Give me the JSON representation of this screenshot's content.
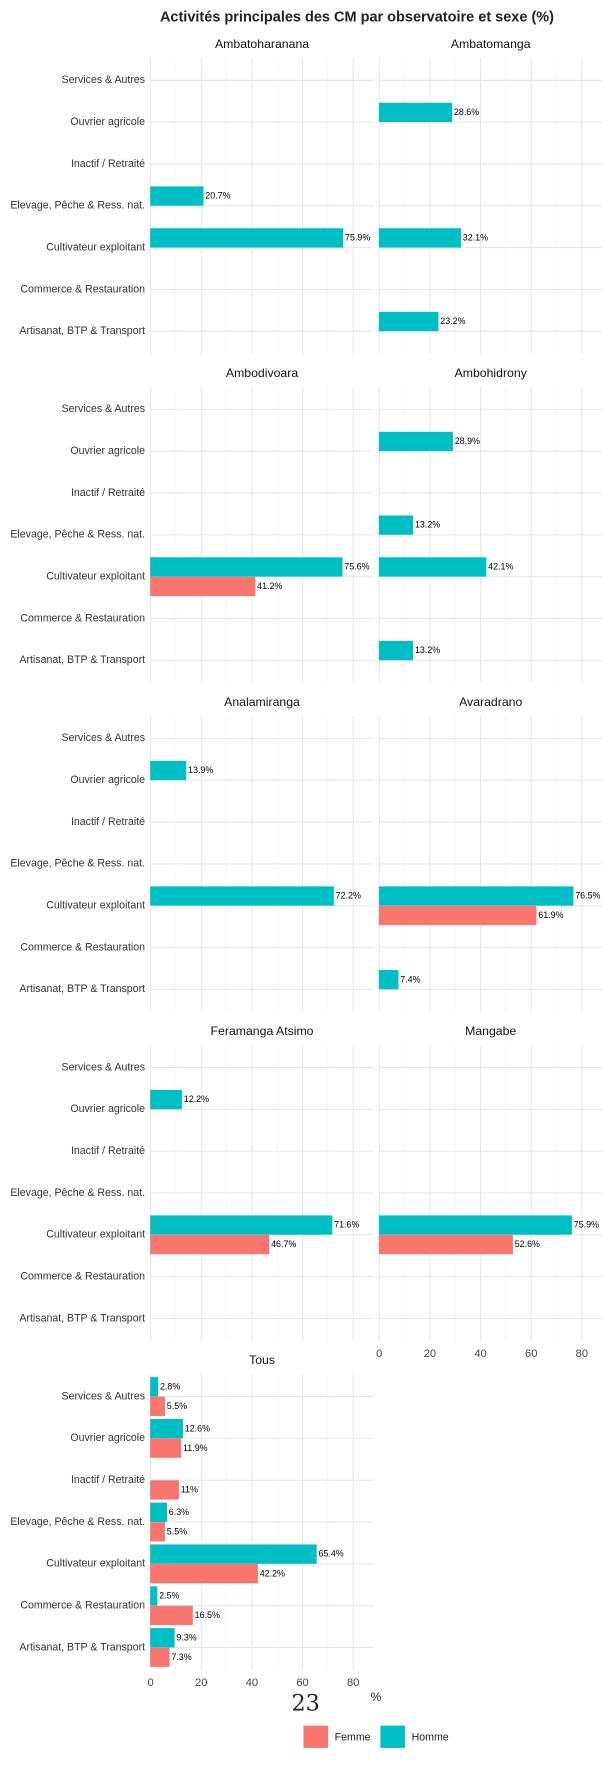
{
  "chart_data": {
    "type": "bar",
    "orientation": "horizontal",
    "title": "Activités principales des CM par observatoire et sexe (%)",
    "x_label": "%",
    "page_number": "23",
    "legend_position": "bottom",
    "legend": [
      {
        "name": "Femme",
        "color": "#F8766D"
      },
      {
        "name": "Homme",
        "color": "#00BFC4"
      }
    ],
    "categories": [
      "Services & Autres",
      "Ouvrier agricole",
      "Inactif / Retraité",
      "Elevage, Pêche & Ress. nat.",
      "Cultivateur exploitant",
      "Commerce & Restauration",
      "Artisanat, BTP & Transport"
    ],
    "xlim": [
      0,
      88
    ],
    "xticks": [
      0,
      20,
      40,
      60,
      80
    ],
    "grid": true,
    "facets": [
      {
        "name": "Ambatoharanana",
        "series": [
          {
            "values": [
              0,
              0,
              0,
              0,
              0,
              0,
              0
            ],
            "value_labels": [
              null,
              null,
              null,
              null,
              null,
              null,
              null
            ]
          },
          {
            "values": [
              0,
              0,
              0,
              20.7,
              75.9,
              0,
              0
            ],
            "value_labels": [
              null,
              null,
              null,
              "20.7%",
              "75.9%",
              null,
              null
            ]
          }
        ]
      },
      {
        "name": "Ambatomanga",
        "series": [
          {
            "values": [
              0,
              0,
              0,
              0,
              0,
              0,
              0
            ],
            "value_labels": [
              null,
              null,
              null,
              null,
              null,
              null,
              null
            ]
          },
          {
            "values": [
              0,
              28.6,
              0,
              0,
              32.1,
              0,
              23.2
            ],
            "value_labels": [
              null,
              "28.6%",
              null,
              null,
              "32.1%",
              null,
              "23.2%"
            ]
          }
        ]
      },
      {
        "name": "Ambodivoara",
        "series": [
          {
            "values": [
              0,
              0,
              0,
              0,
              41.2,
              0,
              0
            ],
            "value_labels": [
              null,
              null,
              null,
              null,
              "41.2%",
              null,
              null
            ]
          },
          {
            "values": [
              0,
              0,
              0,
              0,
              75.6,
              0,
              0
            ],
            "value_labels": [
              null,
              null,
              null,
              null,
              "75.6%",
              null,
              null
            ]
          }
        ]
      },
      {
        "name": "Ambohidrony",
        "series": [
          {
            "values": [
              0,
              0,
              0,
              0,
              0,
              0,
              0
            ],
            "value_labels": [
              null,
              null,
              null,
              null,
              null,
              null,
              null
            ]
          },
          {
            "values": [
              0,
              28.9,
              0,
              13.2,
              42.1,
              0,
              13.2
            ],
            "value_labels": [
              null,
              "28.9%",
              null,
              "13.2%",
              "42.1%",
              null,
              "13.2%"
            ]
          }
        ]
      },
      {
        "name": "Analamiranga",
        "series": [
          {
            "values": [
              0,
              0,
              0,
              0,
              0,
              0,
              0
            ],
            "value_labels": [
              null,
              null,
              null,
              null,
              null,
              null,
              null
            ]
          },
          {
            "values": [
              0,
              13.9,
              0,
              0,
              72.2,
              0,
              0
            ],
            "value_labels": [
              null,
              "13.9%",
              null,
              null,
              "72.2%",
              null,
              null
            ]
          }
        ]
      },
      {
        "name": "Avaradrano",
        "series": [
          {
            "values": [
              0,
              0,
              0,
              0,
              61.9,
              0,
              0
            ],
            "value_labels": [
              null,
              null,
              null,
              null,
              "61.9%",
              null,
              null
            ]
          },
          {
            "values": [
              0,
              0,
              0,
              0,
              76.5,
              0,
              7.4
            ],
            "value_labels": [
              null,
              null,
              null,
              null,
              "76.5%",
              null,
              "7.4%"
            ]
          }
        ]
      },
      {
        "name": "Feramanga Atsimo",
        "series": [
          {
            "values": [
              0,
              0,
              0,
              0,
              46.7,
              0,
              0
            ],
            "value_labels": [
              null,
              null,
              null,
              null,
              "46.7%",
              null,
              null
            ]
          },
          {
            "values": [
              0,
              12.2,
              0,
              0,
              71.6,
              0,
              0
            ],
            "value_labels": [
              null,
              "12.2%",
              null,
              null,
              "71.6%",
              null,
              null
            ]
          }
        ]
      },
      {
        "name": "Mangabe",
        "series": [
          {
            "values": [
              0,
              0,
              0,
              0,
              52.6,
              0,
              0
            ],
            "value_labels": [
              null,
              null,
              null,
              null,
              "52.6%",
              null,
              null
            ]
          },
          {
            "values": [
              0,
              0,
              0,
              0,
              75.9,
              0,
              0
            ],
            "value_labels": [
              null,
              null,
              null,
              null,
              "75.9%",
              null,
              null
            ]
          }
        ]
      },
      {
        "name": "Tous",
        "series": [
          {
            "values": [
              5.5,
              11.9,
              11,
              5.5,
              42.2,
              16.5,
              7.3
            ],
            "value_labels": [
              "5.5%",
              "11.9%",
              "11%",
              "5.5%",
              "42.2%",
              "16.5%",
              "7.3%"
            ]
          },
          {
            "values": [
              2.8,
              12.6,
              0,
              6.3,
              65.4,
              2.5,
              9.3
            ],
            "value_labels": [
              "2.8%",
              "12.6%",
              null,
              "6.3%",
              "65.4%",
              "2.5%",
              "9.3%"
            ]
          }
        ]
      }
    ]
  }
}
